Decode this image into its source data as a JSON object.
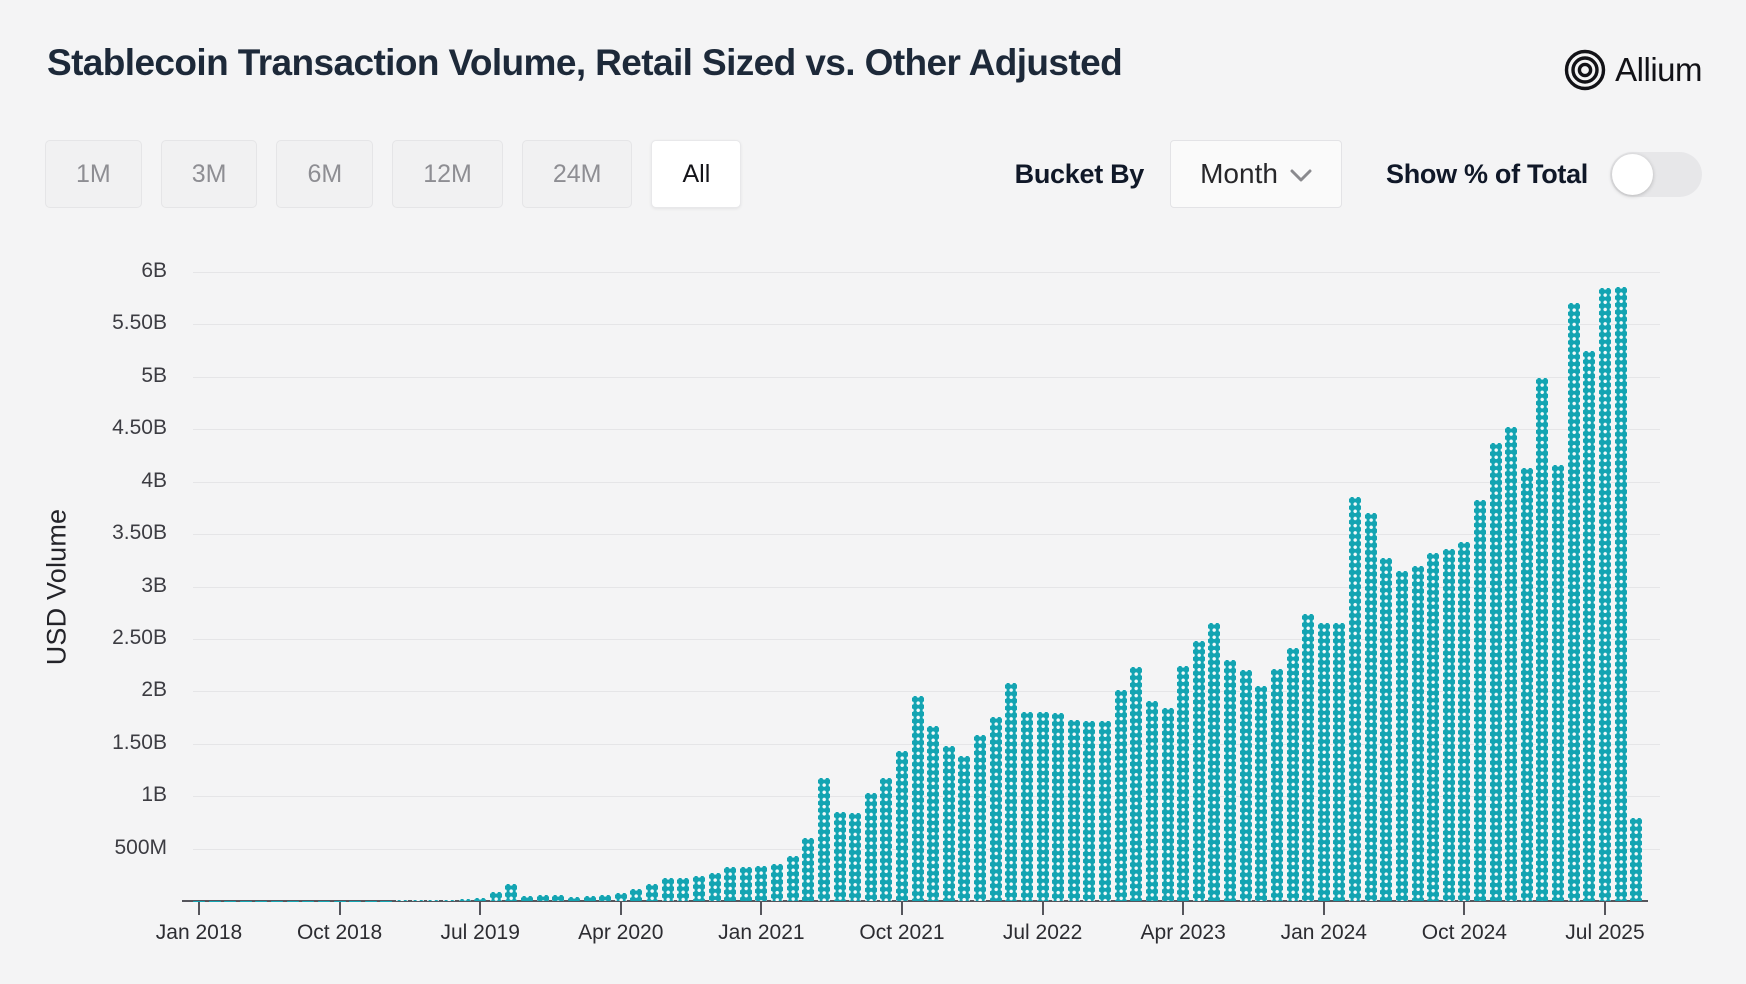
{
  "header": {
    "title": "Stablecoin Transaction Volume, Retail Sized vs. Other Adjusted",
    "logo_text": "Allium"
  },
  "controls": {
    "range_buttons": [
      {
        "label": "1M",
        "active": false
      },
      {
        "label": "3M",
        "active": false
      },
      {
        "label": "6M",
        "active": false
      },
      {
        "label": "12M",
        "active": false
      },
      {
        "label": "24M",
        "active": false
      },
      {
        "label": "All",
        "active": true
      }
    ],
    "bucket_by_label": "Bucket By",
    "bucket_by_value": "Month",
    "show_pct_label": "Show % of Total",
    "show_pct_enabled": false
  },
  "chart_data": {
    "type": "bar",
    "title": "Stablecoin Transaction Volume, Retail Sized vs. Other Adjusted",
    "xlabel": "",
    "ylabel": "USD Volume",
    "bar_color": "#13a4b2",
    "background": "#f4f4f5",
    "grid": true,
    "ylim_usd_billions": [
      0,
      6
    ],
    "y_ticks_top_to_bottom": [
      "6B",
      "5.50B",
      "5B",
      "4.50B",
      "4B",
      "3.50B",
      "3B",
      "2.50B",
      "2B",
      "1.50B",
      "1B",
      "500M"
    ],
    "x_ticks": [
      {
        "index": 0,
        "label": "Jan 2018"
      },
      {
        "index": 9,
        "label": "Oct 2018"
      },
      {
        "index": 18,
        "label": "Jul 2019"
      },
      {
        "index": 27,
        "label": "Apr 2020"
      },
      {
        "index": 36,
        "label": "Jan 2021"
      },
      {
        "index": 45,
        "label": "Oct 2021"
      },
      {
        "index": 54,
        "label": "Jul 2022"
      },
      {
        "index": 63,
        "label": "Apr 2023"
      },
      {
        "index": 72,
        "label": "Jan 2024"
      },
      {
        "index": 81,
        "label": "Oct 2024"
      },
      {
        "index": 90,
        "label": "Jul 2025"
      }
    ],
    "months": [
      "Jan 2018",
      "Feb 2018",
      "Mar 2018",
      "Apr 2018",
      "May 2018",
      "Jun 2018",
      "Jul 2018",
      "Aug 2018",
      "Sep 2018",
      "Oct 2018",
      "Nov 2018",
      "Dec 2018",
      "Jan 2019",
      "Feb 2019",
      "Mar 2019",
      "Apr 2019",
      "May 2019",
      "Jun 2019",
      "Jul 2019",
      "Aug 2019",
      "Sep 2019",
      "Oct 2019",
      "Nov 2019",
      "Dec 2019",
      "Jan 2020",
      "Feb 2020",
      "Mar 2020",
      "Apr 2020",
      "May 2020",
      "Jun 2020",
      "Jul 2020",
      "Aug 2020",
      "Sep 2020",
      "Oct 2020",
      "Nov 2020",
      "Dec 2020",
      "Jan 2021",
      "Feb 2021",
      "Mar 2021",
      "Apr 2021",
      "May 2021",
      "Jun 2021",
      "Jul 2021",
      "Aug 2021",
      "Sep 2021",
      "Oct 2021",
      "Nov 2021",
      "Dec 2021",
      "Jan 2022",
      "Feb 2022",
      "Mar 2022",
      "Apr 2022",
      "May 2022",
      "Jun 2022",
      "Jul 2022",
      "Aug 2022",
      "Sep 2022",
      "Oct 2022",
      "Nov 2022",
      "Dec 2022",
      "Jan 2023",
      "Feb 2023",
      "Mar 2023",
      "Apr 2023",
      "May 2023",
      "Jun 2023",
      "Jul 2023",
      "Aug 2023",
      "Sep 2023",
      "Oct 2023",
      "Nov 2023",
      "Dec 2023",
      "Jan 2024",
      "Feb 2024",
      "Mar 2024",
      "Apr 2024",
      "May 2024",
      "Jun 2024",
      "Jul 2024",
      "Aug 2024",
      "Sep 2024",
      "Oct 2024",
      "Nov 2024",
      "Dec 2024",
      "Jan 2025",
      "Feb 2025",
      "Mar 2025",
      "Apr 2025",
      "May 2025",
      "Jun 2025",
      "Jul 2025",
      "Aug 2025",
      "Sep 2025"
    ],
    "values_usd_millions": [
      1,
      1,
      1,
      1,
      2,
      2,
      2,
      2,
      3,
      3,
      3,
      4,
      4,
      5,
      5,
      6,
      8,
      16,
      25,
      83,
      159,
      51,
      60,
      60,
      35,
      48,
      60,
      80,
      115,
      160,
      222,
      222,
      240,
      265,
      327,
      327,
      334,
      350,
      430,
      600,
      1170,
      850,
      840,
      1030,
      1170,
      1430,
      1960,
      1670,
      1480,
      1380,
      1580,
      1760,
      2080,
      1800,
      1800,
      1790,
      1730,
      1720,
      1720,
      2010,
      2230,
      1910,
      1840,
      2240,
      2480,
      2650,
      2300,
      2200,
      2050,
      2210,
      2410,
      2740,
      2650,
      2650,
      3850,
      3700,
      3270,
      3150,
      3200,
      3320,
      3360,
      3420,
      3830,
      4370,
      4520,
      4130,
      4990,
      4160,
      5700,
      5250,
      5850,
      5860,
      795
    ]
  }
}
